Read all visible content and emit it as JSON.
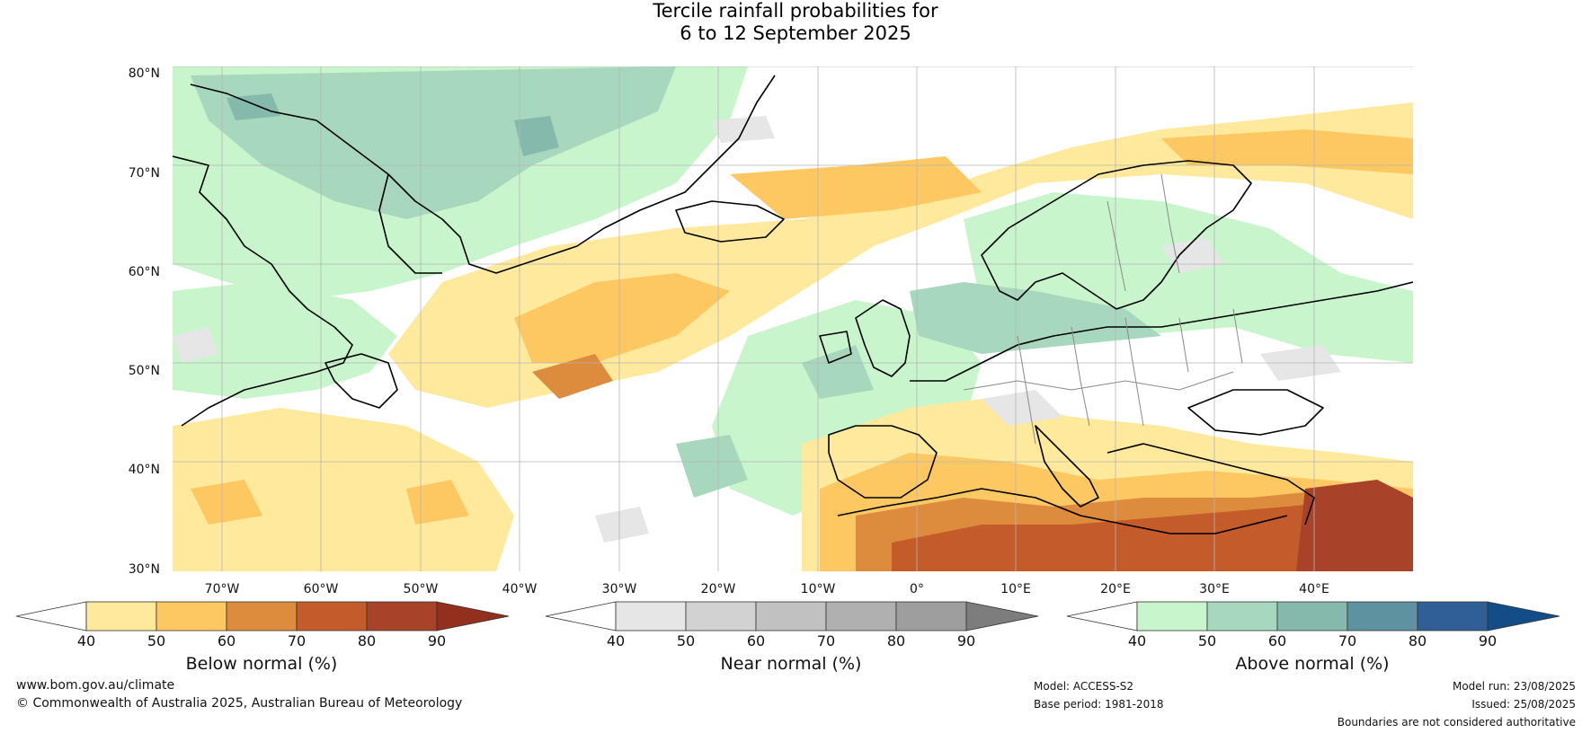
{
  "title": {
    "line1": "Tercile rainfall probabilities for",
    "line2": "6 to 12 September 2025"
  },
  "map": {
    "lat_labels": [
      "80°N",
      "70°N",
      "60°N",
      "50°N",
      "40°N",
      "30°N"
    ],
    "lon_labels": [
      "70°W",
      "60°W",
      "50°W",
      "40°W",
      "30°W",
      "20°W",
      "10°W",
      "0°",
      "10°E",
      "20°E",
      "30°E",
      "40°E"
    ],
    "lat_range": [
      30,
      81
    ],
    "lon_range": [
      -75,
      50
    ],
    "gridlines": true
  },
  "colorbars": [
    {
      "title": "Below normal (%)",
      "ticks": [
        "40",
        "50",
        "60",
        "70",
        "80",
        "90"
      ],
      "colors": [
        "#ffffff",
        "#fee99c",
        "#fdc862",
        "#dd8b3c",
        "#c45b2a",
        "#a8432a",
        "#922f1d"
      ]
    },
    {
      "title": "Near normal (%)",
      "ticks": [
        "40",
        "50",
        "60",
        "70",
        "80",
        "90"
      ],
      "colors": [
        "#ffffff",
        "#e6e6e6",
        "#d2d2d2",
        "#c1c1c1",
        "#b0b0b0",
        "#9e9e9e",
        "#7d7d7d"
      ]
    },
    {
      "title": "Above normal (%)",
      "ticks": [
        "40",
        "50",
        "60",
        "70",
        "80",
        "90"
      ],
      "colors": [
        "#ffffff",
        "#c8f5cc",
        "#a7d7bd",
        "#85b9ac",
        "#5e92a1",
        "#2f5f96",
        "#134d88"
      ]
    }
  ],
  "footer": {
    "website": "www.bom.gov.au/climate",
    "copyright": "© Commonwealth of Australia 2025, Australian Bureau of Meteorology",
    "model": "Model: ACCESS-S2",
    "base_period": "Base period: 1981-2018",
    "model_run": "Model run: 23/08/2025",
    "issued": "Issued: 25/08/2025",
    "disclaimer": "Boundaries are not considered authoritative"
  }
}
